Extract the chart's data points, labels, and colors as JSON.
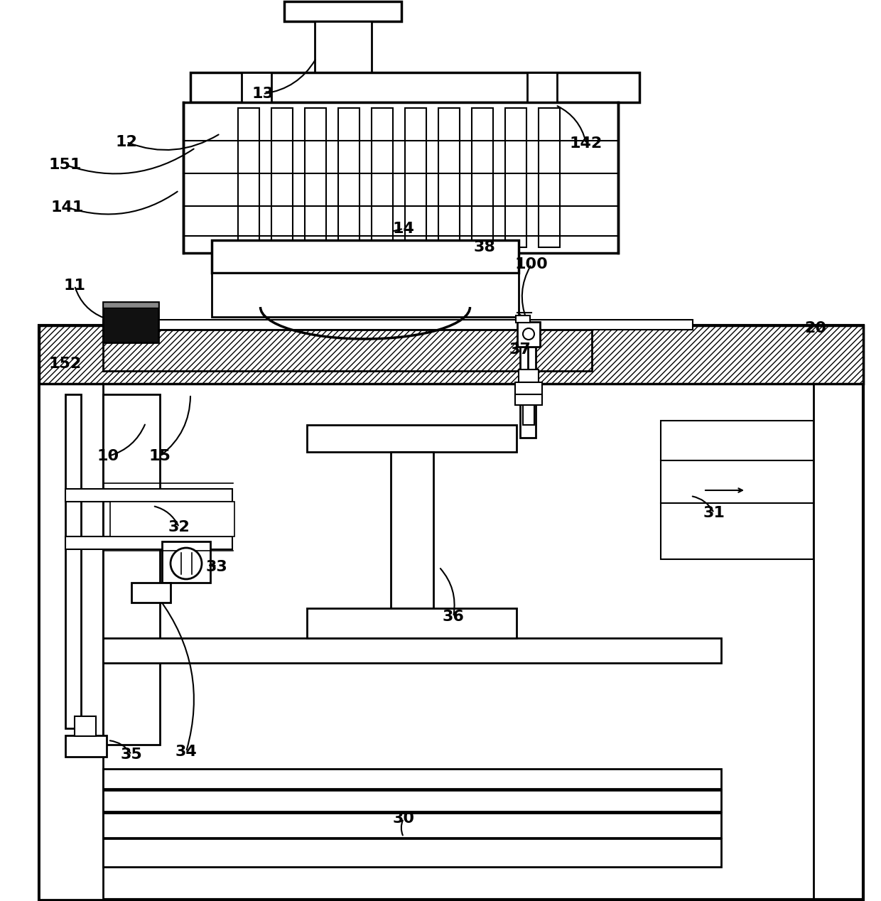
{
  "bg_color": "#ffffff",
  "lw_main": 2.5,
  "lw_thin": 1.5,
  "figsize": [
    12.4,
    12.68
  ],
  "dpi": 100,
  "labels": [
    [
      "10",
      152,
      642
    ],
    [
      "11",
      105,
      402
    ],
    [
      "12",
      178,
      200
    ],
    [
      "13",
      370,
      132
    ],
    [
      "14",
      568,
      322
    ],
    [
      "15",
      225,
      642
    ],
    [
      "20",
      1148,
      462
    ],
    [
      "30",
      568,
      1152
    ],
    [
      "31",
      1005,
      722
    ],
    [
      "32",
      252,
      742
    ],
    [
      "33",
      305,
      798
    ],
    [
      "34",
      262,
      1058
    ],
    [
      "35",
      185,
      1062
    ],
    [
      "36",
      638,
      868
    ],
    [
      "37",
      732,
      492
    ],
    [
      "38",
      682,
      348
    ],
    [
      "100",
      748,
      372
    ],
    [
      "141",
      95,
      292
    ],
    [
      "142",
      825,
      202
    ],
    [
      "151",
      92,
      232
    ],
    [
      "152",
      92,
      512
    ]
  ],
  "leaders": [
    [
      "10",
      152,
      642,
      205,
      595
    ],
    [
      "11",
      105,
      402,
      148,
      448
    ],
    [
      "12",
      178,
      200,
      310,
      188
    ],
    [
      "13",
      370,
      132,
      445,
      82
    ],
    [
      "14",
      568,
      322,
      515,
      358
    ],
    [
      "15",
      225,
      642,
      268,
      555
    ],
    [
      "20",
      1148,
      462,
      1148,
      495
    ],
    [
      "30",
      568,
      1152,
      568,
      1178
    ],
    [
      "31",
      1005,
      722,
      972,
      698
    ],
    [
      "32",
      252,
      742,
      215,
      712
    ],
    [
      "33",
      305,
      798,
      275,
      792
    ],
    [
      "34",
      262,
      1058,
      222,
      840
    ],
    [
      "35",
      185,
      1062,
      152,
      1042
    ],
    [
      "36",
      638,
      868,
      618,
      798
    ],
    [
      "37",
      732,
      492,
      742,
      472
    ],
    [
      "38",
      682,
      348,
      742,
      450
    ],
    [
      "100",
      748,
      372,
      742,
      452
    ],
    [
      "141",
      95,
      292,
      252,
      268
    ],
    [
      "142",
      825,
      202,
      782,
      148
    ],
    [
      "151",
      92,
      232,
      275,
      208
    ],
    [
      "152",
      92,
      512,
      148,
      498
    ]
  ]
}
